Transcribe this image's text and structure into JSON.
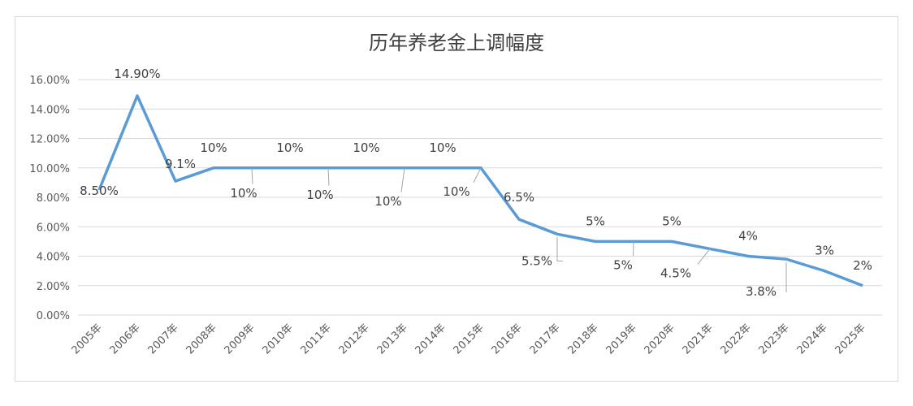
{
  "chart_data": {
    "type": "line",
    "title": "历年养老金上调幅度",
    "xlabel": "",
    "ylabel": "",
    "ylim": [
      0,
      16
    ],
    "grid": true,
    "legend": "none",
    "series_color": "#5b9bd5",
    "yticks": [
      "0.00%",
      "2.00%",
      "4.00%",
      "6.00%",
      "8.00%",
      "10.00%",
      "12.00%",
      "14.00%",
      "16.00%"
    ],
    "categories": [
      "2005年",
      "2006年",
      "2007年",
      "2008年",
      "2009年",
      "2010年",
      "2011年",
      "2012年",
      "2013年",
      "2014年",
      "2015年",
      "2016年",
      "2017年",
      "2018年",
      "2019年",
      "2020年",
      "2021年",
      "2022年",
      "2023年",
      "2024年",
      "2025年"
    ],
    "values": [
      8.5,
      14.9,
      9.1,
      10,
      10,
      10,
      10,
      10,
      10,
      10,
      10,
      6.5,
      5.5,
      5,
      5,
      5,
      4.5,
      4,
      3.8,
      3,
      2
    ],
    "labels": [
      "8.50%",
      "14.90%",
      "9.1%",
      "10%",
      "10%",
      "10%",
      "10%",
      "10%",
      "10%",
      "10%",
      "10%",
      "6.5%",
      "5.5%",
      "5%",
      "5%",
      "5%",
      "4.5%",
      "4%",
      "3.8%",
      "3%",
      "2%"
    ]
  }
}
